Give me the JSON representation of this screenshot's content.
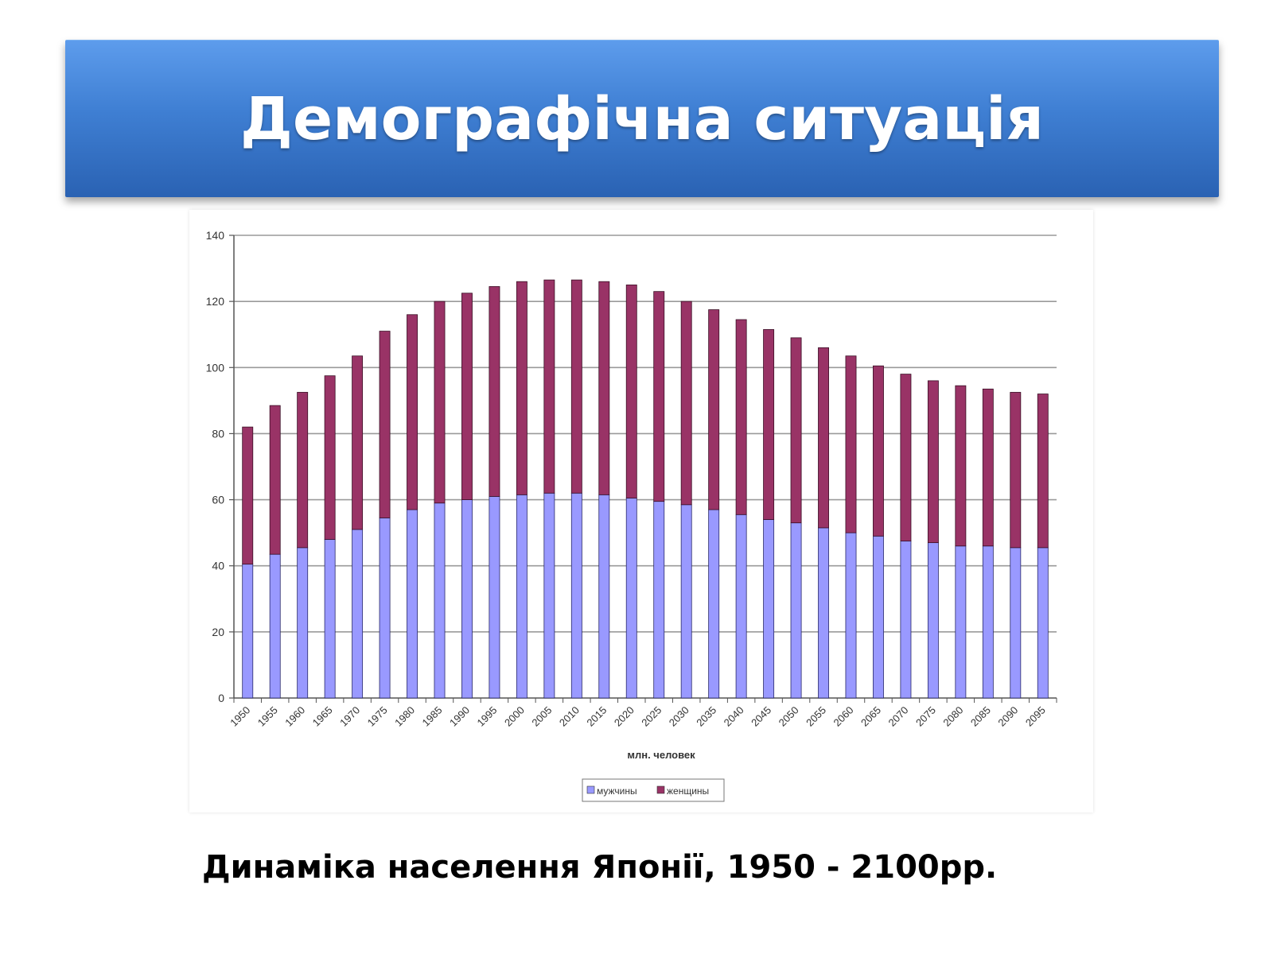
{
  "title": "Демографічна ситуація",
  "caption": "Динаміка населення Японії, 1950 - 2100рр.",
  "chart_data": {
    "type": "bar",
    "stacked": true,
    "categories": [
      "1950",
      "1955",
      "1960",
      "1965",
      "1970",
      "1975",
      "1980",
      "1985",
      "1990",
      "1995",
      "2000",
      "2005",
      "2010",
      "2015",
      "2020",
      "2025",
      "2030",
      "2035",
      "2040",
      "2045",
      "2050",
      "2055",
      "2060",
      "2065",
      "2070",
      "2075",
      "2080",
      "2085",
      "2090",
      "2095"
    ],
    "series": [
      {
        "name": "мужчины",
        "color": "#9999ff",
        "values": [
          40.5,
          43.5,
          45.5,
          48,
          51,
          54.5,
          57,
          59,
          60,
          61,
          61.5,
          62,
          62,
          61.5,
          60.5,
          59.5,
          58.5,
          57,
          55.5,
          54,
          53,
          51.5,
          50,
          49,
          47.5,
          47,
          46,
          46,
          45.5,
          45.5
        ]
      },
      {
        "name": "женщины",
        "color": "#993366",
        "values": [
          41.5,
          45,
          47,
          49.5,
          52.5,
          56.5,
          59,
          61,
          62.5,
          63.5,
          64.5,
          64.5,
          64.5,
          64.5,
          64.5,
          63.5,
          61.5,
          60.5,
          59,
          57.5,
          56,
          54.5,
          53.5,
          51.5,
          50.5,
          49,
          48.5,
          47.5,
          47,
          46.5
        ]
      }
    ],
    "xlabel": "млн. человек",
    "ylabel": "",
    "ylim": [
      0,
      140
    ],
    "yticks": [
      0,
      20,
      40,
      60,
      80,
      100,
      120,
      140
    ],
    "grid": true,
    "legend": "bottom-center"
  }
}
